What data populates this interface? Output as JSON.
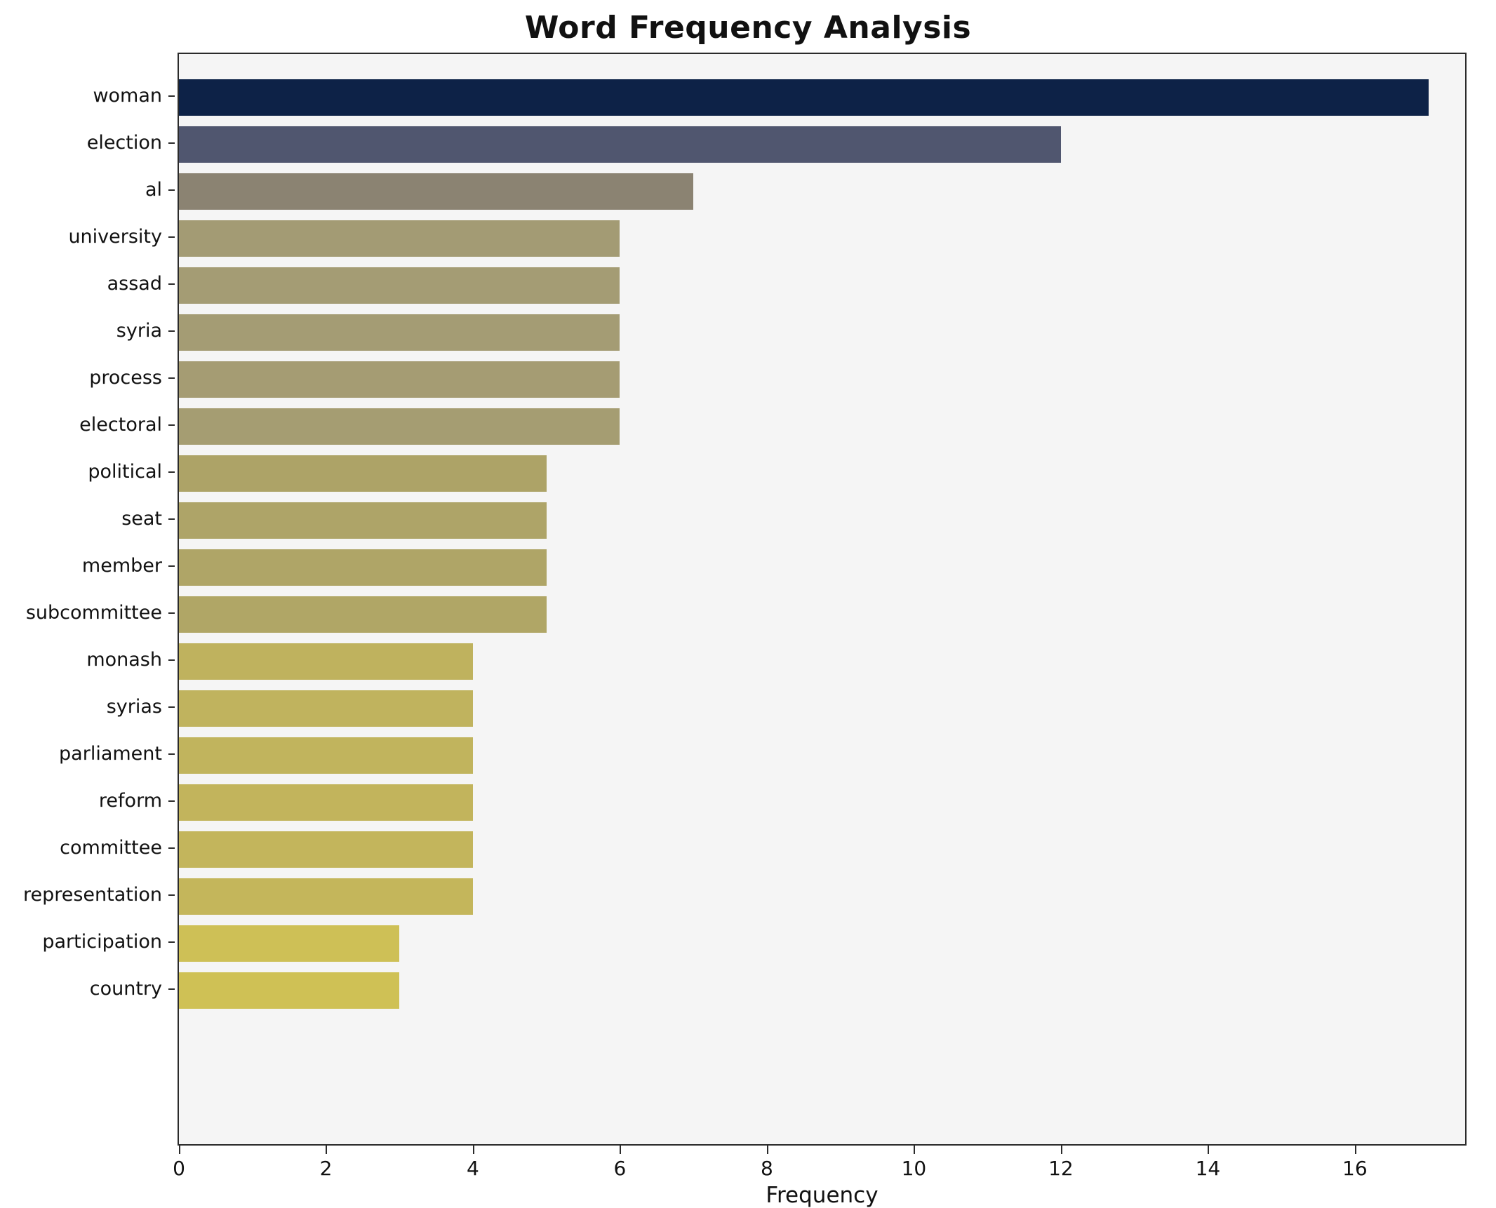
{
  "chart_data": {
    "type": "bar",
    "orientation": "horizontal",
    "title": "Word Frequency Analysis",
    "xlabel": "Frequency",
    "ylabel": "",
    "categories": [
      "woman",
      "election",
      "al",
      "university",
      "assad",
      "syria",
      "process",
      "electoral",
      "political",
      "seat",
      "member",
      "subcommittee",
      "monash",
      "syrias",
      "parliament",
      "reform",
      "committee",
      "representation",
      "participation",
      "country"
    ],
    "values": [
      17,
      12,
      7,
      6,
      6,
      6,
      6,
      6,
      5,
      5,
      5,
      5,
      4,
      4,
      4,
      4,
      4,
      4,
      3,
      3
    ],
    "colors": [
      "#0d2247",
      "#50566f",
      "#8b8372",
      "#a39b74",
      "#a49c74",
      "#a49c74",
      "#a59c73",
      "#a59d72",
      "#ada367",
      "#aea468",
      "#afa567",
      "#b0a666",
      "#bfb25e",
      "#c0b35e",
      "#c1b45d",
      "#c2b45c",
      "#c3b55c",
      "#c4b65b",
      "#cec056",
      "#cfc155"
    ],
    "xlim": [
      0,
      17.5
    ],
    "xticks": [
      0,
      2,
      4,
      6,
      8,
      10,
      12,
      14,
      16
    ],
    "grid": false,
    "legend": false,
    "plot_bg": "#f5f5f5",
    "fig_bg": "#ffffff",
    "spine_color": "#2b2b2b"
  }
}
